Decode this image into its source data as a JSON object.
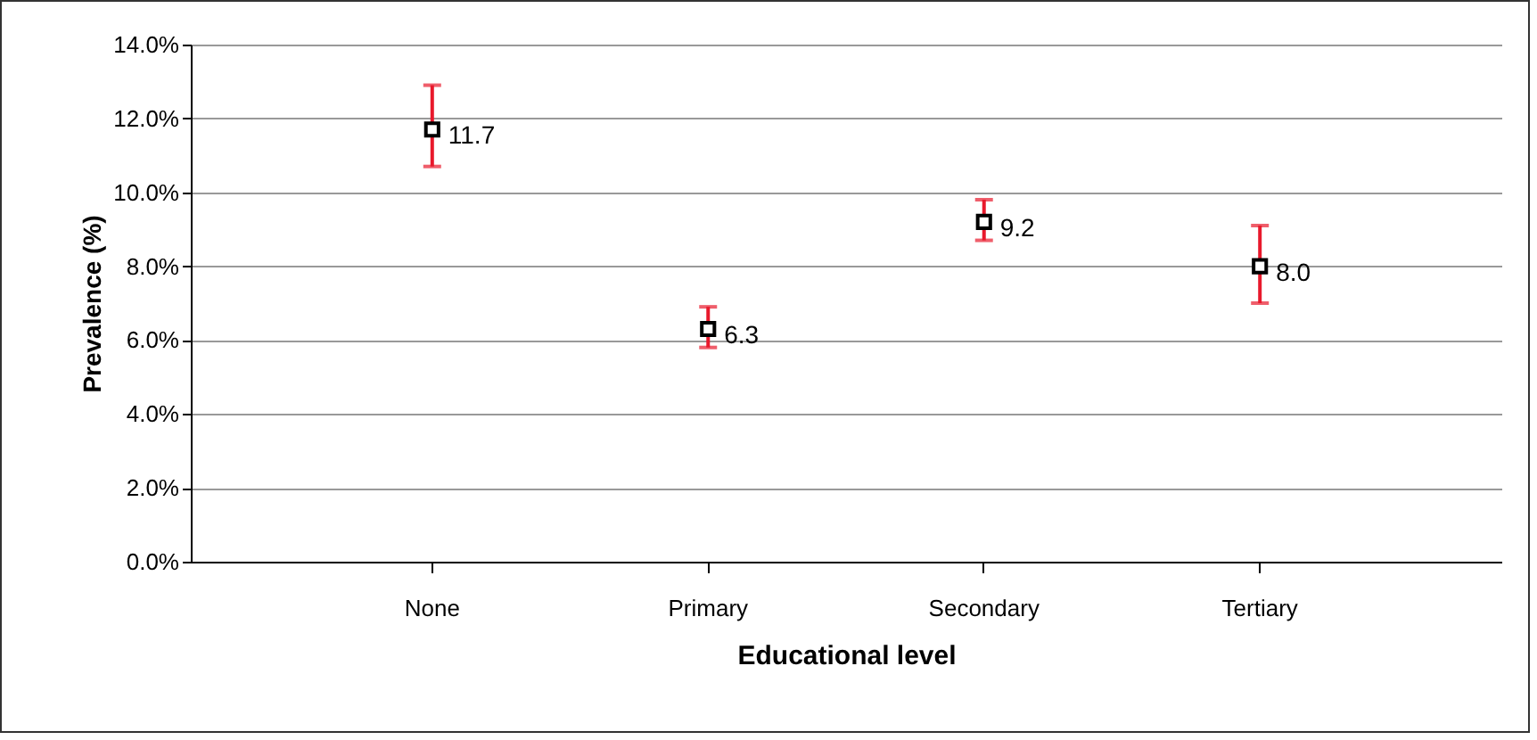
{
  "chart_data": {
    "type": "scatter",
    "xlabel": "Educational level",
    "ylabel": "Prevalence (%)",
    "categories": [
      "None",
      "Primary",
      "Secondary",
      "Tertiary"
    ],
    "series": [
      {
        "color": "#000000",
        "values": [
          11.7,
          6.3,
          9.2,
          8.0
        ],
        "value_labels": [
          "11.7",
          "6.3",
          "9.2",
          "8.0"
        ],
        "errors": [
          [
            10.7,
            12.9
          ],
          [
            5.8,
            6.9
          ],
          [
            8.7,
            9.8
          ],
          [
            7.0,
            9.1
          ]
        ]
      }
    ],
    "ylim": [
      0,
      14
    ],
    "yticks": [
      {
        "value": 0,
        "label": "0.0%"
      },
      {
        "value": 2,
        "label": "2.0%"
      },
      {
        "value": 4,
        "label": "4.0%"
      },
      {
        "value": 6,
        "label": "6.0%"
      },
      {
        "value": 8,
        "label": "8.0%"
      },
      {
        "value": 10,
        "label": "10.0%"
      },
      {
        "value": 12,
        "label": "12.0%"
      },
      {
        "value": 14,
        "label": "14.0%"
      }
    ],
    "grid": "y",
    "marker": "square"
  }
}
